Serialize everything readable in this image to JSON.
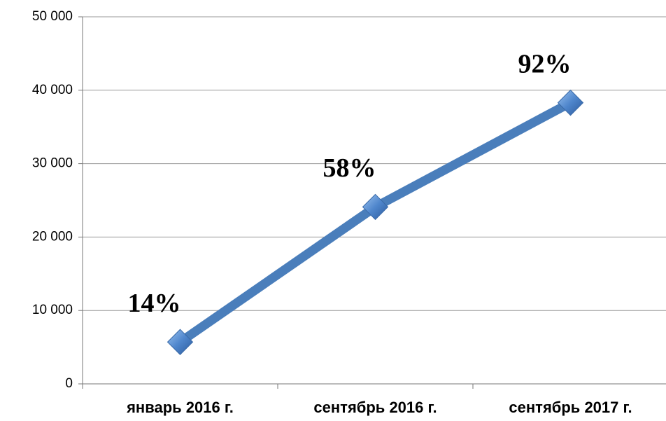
{
  "chart_data": {
    "type": "line",
    "categories": [
      "январь 2016 г.",
      "сентябрь 2016 г.",
      "сентябрь 2017 г."
    ],
    "series": [
      {
        "color": "#4a7ebb",
        "values": [
          5700,
          24100,
          38300
        ]
      }
    ],
    "point_labels": [
      "14%",
      "58%",
      "92%"
    ],
    "ylim": [
      0,
      50000
    ],
    "yticks": [
      0,
      {
        "value": 10000,
        "label": "10 000"
      },
      {
        "value": 20000,
        "label": "20 000"
      },
      {
        "value": 30000,
        "label": "30 000"
      },
      {
        "value": 40000,
        "label": "40 000"
      },
      {
        "value": 50000,
        "label": "50 000"
      }
    ],
    "grid": true
  }
}
